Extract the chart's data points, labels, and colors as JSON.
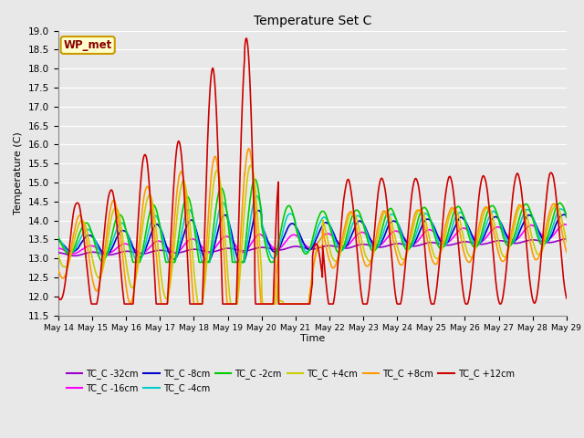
{
  "title": "Temperature Set C",
  "xlabel": "Time",
  "ylabel": "Temperature (C)",
  "ylim": [
    11.5,
    19.0
  ],
  "yticks": [
    11.5,
    12.0,
    12.5,
    13.0,
    13.5,
    14.0,
    14.5,
    15.0,
    15.5,
    16.0,
    16.5,
    17.0,
    17.5,
    18.0,
    18.5,
    19.0
  ],
  "background_color": "#e0e0e0",
  "plot_bg_color": "#e8e8e8",
  "grid_color": "#ffffff",
  "wp_met_label": "WP_met",
  "wp_met_bg": "#ffffcc",
  "wp_met_border": "#cc9900",
  "series": {
    "TC_C -32cm": {
      "color": "#9900cc",
      "lw": 1.2
    },
    "TC_C -16cm": {
      "color": "#ff00ff",
      "lw": 1.2
    },
    "TC_C -8cm": {
      "color": "#0000cc",
      "lw": 1.2
    },
    "TC_C -4cm": {
      "color": "#00cccc",
      "lw": 1.2
    },
    "TC_C -2cm": {
      "color": "#00cc00",
      "lw": 1.2
    },
    "TC_C +4cm": {
      "color": "#cccc00",
      "lw": 1.2
    },
    "TC_C +8cm": {
      "color": "#ff9900",
      "lw": 1.2
    },
    "TC_C +12cm": {
      "color": "#cc0000",
      "lw": 1.2
    }
  }
}
